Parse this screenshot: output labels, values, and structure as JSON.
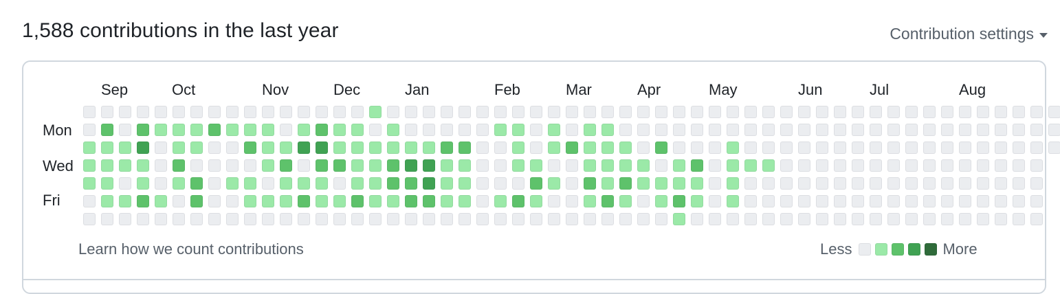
{
  "header": {
    "title": "1,588 contributions in the last year",
    "settings_label": "Contribution settings"
  },
  "months": [
    "Sep",
    "Oct",
    "Nov",
    "Dec",
    "Jan",
    "Feb",
    "Mar",
    "Apr",
    "May",
    "Jun",
    "Jul",
    "Aug"
  ],
  "day_labels": [
    "Mon",
    "Wed",
    "Fri"
  ],
  "footer": {
    "learn_link": "Learn how we count contributions",
    "legend_less": "Less",
    "legend_more": "More"
  },
  "colors": {
    "level0": "#ebedf0",
    "level1": "#9be9a8",
    "level2": "#5ec26b",
    "level3": "#40a253",
    "level4": "#2f6b3a",
    "border": "#d0d7de",
    "muted_text": "#57606a"
  },
  "contribution_levels": [
    "0000000000000000100000000000000000000000000000000000000",
    "0202111211101211010000011010110000000000000000000000000",
    "1113011002113311111122001012111020001000000000000000000",
    "1111020000120221123311001100111101201110000000000000000",
    "1101012011011101122311000210212111101000000000000000000",
    "0112102001112112112211012100121012101000000000000000000",
    "0000000000000000000000000000000001000000000000000000000"
  ]
}
